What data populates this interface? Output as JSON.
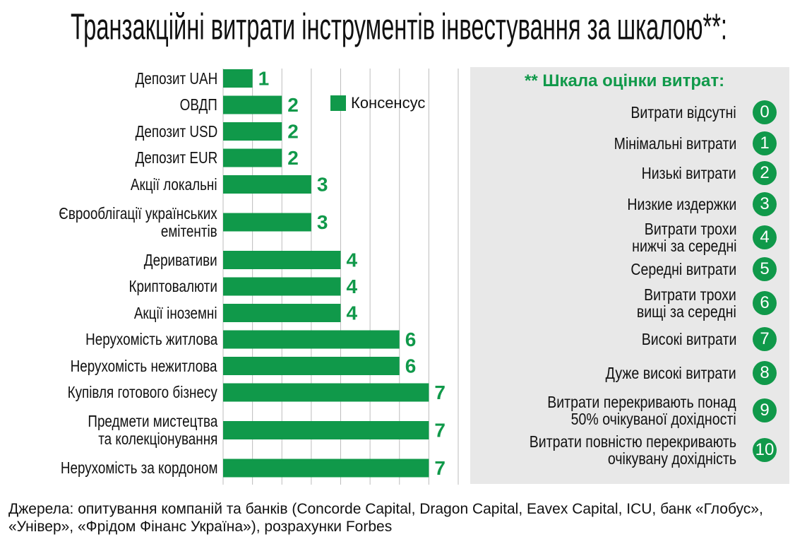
{
  "chart_data": {
    "type": "bar",
    "orientation": "horizontal",
    "title": "Транзакційні витрати інструментів інвестування за шкалою**:",
    "categories": [
      "Депозит UAH",
      "ОВДП",
      "Депозит USD",
      "Депозит EUR",
      "Акції локальні",
      "Єврооблігації українських\nемітентів",
      "Деривативи",
      "Криптовалюти",
      "Акції іноземні",
      "Нерухомість житлова",
      "Нерухомість нежитлова",
      "Купівля готового бізнесу",
      "Предмети мистецтва\nта колекціонування",
      "Нерухомість за кордоном"
    ],
    "series": [
      {
        "name": "Консенсус",
        "color": "#10994a",
        "values": [
          1,
          2,
          2,
          2,
          3,
          3,
          4,
          4,
          4,
          6,
          6,
          7,
          7,
          7
        ]
      }
    ],
    "xlim": [
      0,
      8
    ],
    "xticks": [
      0,
      1,
      2,
      3,
      4,
      5,
      6,
      7,
      8
    ],
    "grid": true
  },
  "scale": {
    "title": "** Шкала оцінки витрат:",
    "items": [
      {
        "label": "Витрати відсутні",
        "score": "0"
      },
      {
        "label": "Мінімальні витрати",
        "score": "1"
      },
      {
        "label": "Низькі витрати",
        "score": "2"
      },
      {
        "label": "Низкие издержки",
        "score": "3"
      },
      {
        "label": "Витрати трохи\nнижчі за середні",
        "score": "4"
      },
      {
        "label": "Середні витрати",
        "score": "5"
      },
      {
        "label": "Витрати трохи\nвищі за середні",
        "score": "6"
      },
      {
        "label": "Високі витрати",
        "score": "7"
      },
      {
        "label": "Дуже високі витрати",
        "score": "8"
      },
      {
        "label": "Витрати перекривають понад\n50% очікуваної дохідності",
        "score": "9"
      },
      {
        "label": "Витрати повністю перекривають\nочікувану дохідність",
        "score": "10"
      }
    ]
  },
  "source": "Джерела: опитування компаній та банків (Concorde Capital, Dragon Capital, Eavex Capital, ICU, банк «Глобус», «Універ», «Фрідом Фінанс Україна»), розрахунки Forbes"
}
